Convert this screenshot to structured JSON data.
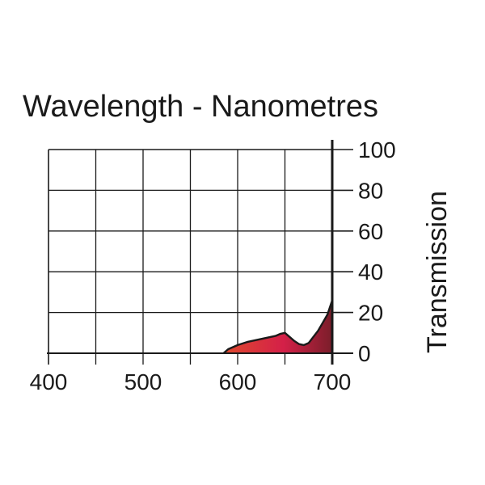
{
  "chart_data": {
    "type": "area",
    "title": "Wavelength - Nanometres",
    "xlabel": "",
    "ylabel": "Transmission",
    "xlim": [
      400,
      700
    ],
    "ylim": [
      0,
      100
    ],
    "x_ticks": [
      400,
      500,
      600,
      700
    ],
    "y_ticks": [
      0,
      20,
      40,
      60,
      80,
      100
    ],
    "x_tick_labels": [
      "400",
      "500",
      "600",
      "700"
    ],
    "y_tick_labels": [
      "0",
      "20",
      "40",
      "60",
      "80",
      "100"
    ],
    "grid": true,
    "x_grid_step": 50,
    "y_grid_step": 20,
    "y_axis_side": "right",
    "series": [
      {
        "x": [
          585,
          590,
          600,
          610,
          620,
          630,
          640,
          645,
          650,
          655,
          660,
          665,
          670,
          675,
          680,
          685,
          690,
          695,
          700
        ],
        "values": [
          0,
          2,
          4,
          5.5,
          6.5,
          7.5,
          8.5,
          9.5,
          10,
          8,
          6,
          4.5,
          4,
          5,
          8,
          11,
          15,
          19,
          26
        ]
      }
    ],
    "colors": {
      "fill_start": "#e04a2e",
      "fill_mid": "#d42048",
      "fill_end": "#7a1e2a",
      "outline": "#1a1a1a",
      "grid": "#1a1a1a"
    }
  }
}
